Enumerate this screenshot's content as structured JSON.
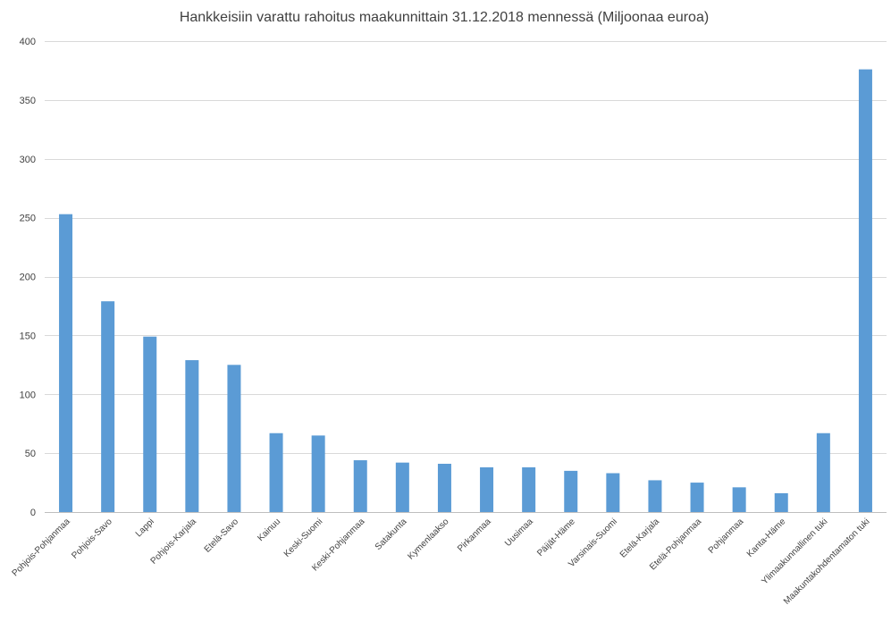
{
  "chart_data": {
    "type": "bar",
    "title": "Hankkeisiin varattu rahoitus maakunnittain 31.12.2018 mennessä (Miljoonaa euroa)",
    "xlabel": "",
    "ylabel": "",
    "ylim": [
      0,
      400
    ],
    "yticks": [
      0,
      50,
      100,
      150,
      200,
      250,
      300,
      350,
      400
    ],
    "grid": true,
    "legend": "none",
    "bar_color": "#5b9bd5",
    "categories": [
      "Pohjois-Pohjanmaa",
      "Pohjois-Savo",
      "Lappi",
      "Pohjois-Karjala",
      "Etelä-Savo",
      "Kainuu",
      "Keski-Suomi",
      "Keski-Pohjanmaa",
      "Satakunta",
      "Kymenlaakso",
      "Pirkanmaa",
      "Uusimaa",
      "Päijät-Häme",
      "Varsinais-Suomi",
      "Etelä-Karjala",
      "Etelä-Pohjanmaa",
      "Pohjanmaa",
      "Kanta-Häme",
      "Ylimaakunnallinen tuki",
      "Maakuntakohdentamaton tuki"
    ],
    "values": [
      253,
      179,
      149,
      129,
      125,
      67,
      65,
      44,
      42,
      41,
      38,
      38,
      35,
      33,
      27,
      25,
      21,
      16,
      67,
      376
    ]
  }
}
